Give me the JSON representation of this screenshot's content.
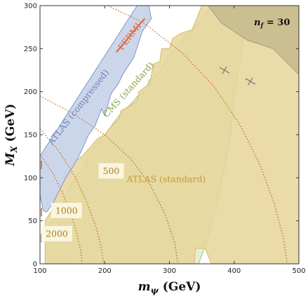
{
  "chart_data": {
    "type": "area",
    "xlabel_main": "m",
    "xlabel_sub": "ψ",
    "xlabel_unit": " (GeV)",
    "ylabel_main": "M",
    "ylabel_sub": "X",
    "ylabel_unit": " (GeV)",
    "xlim": [
      100,
      500
    ],
    "ylim": [
      0,
      300
    ],
    "x_ticks": [
      100,
      200,
      300,
      400,
      500
    ],
    "y_ticks": [
      0,
      50,
      100,
      150,
      200,
      250,
      300
    ],
    "grid": false,
    "annotation": {
      "nf_label": "n",
      "nf_sub": "f",
      "nf_value": " = 30"
    },
    "colors": {
      "atlas_standard": "#e6d59a",
      "atlas_standard_edge": "#d9b86a",
      "cms": "#e3ebcc",
      "cms_edge": "#a8c080",
      "atlas_compressed": "#c9d4ea",
      "atlas_compressed_edge": "#7f97c8",
      "fermi": "#e06a40",
      "nf_region": "#c0b68a",
      "contour": "#c0692c"
    },
    "regions": [
      {
        "id": "cms-standard",
        "label": "CMS (standard)",
        "label_at": [
          240,
          200
        ],
        "label_angle": 48,
        "label_color": "#8aa84a",
        "points": [
          [
            108,
            0
          ],
          [
            108,
            40
          ],
          [
            118,
            48
          ],
          [
            125,
            58
          ],
          [
            135,
            70
          ],
          [
            142,
            82
          ],
          [
            150,
            95
          ],
          [
            158,
            104
          ],
          [
            168,
            110
          ],
          [
            172,
            120
          ],
          [
            180,
            130
          ],
          [
            188,
            140
          ],
          [
            200,
            150
          ],
          [
            210,
            160
          ],
          [
            222,
            172
          ],
          [
            238,
            184
          ],
          [
            250,
            194
          ],
          [
            265,
            202
          ],
          [
            268,
            213
          ],
          [
            285,
            222
          ],
          [
            290,
            232
          ],
          [
            298,
            241
          ],
          [
            310,
            252
          ],
          [
            322,
            262
          ],
          [
            335,
            272
          ],
          [
            350,
            285
          ],
          [
            368,
            300
          ],
          [
            420,
            300
          ],
          [
            410,
            240
          ],
          [
            400,
            200
          ],
          [
            395,
            150
          ],
          [
            385,
            110
          ],
          [
            370,
            60
          ],
          [
            355,
            20
          ],
          [
            345,
            0
          ]
        ]
      },
      {
        "id": "atlas-standard",
        "label": "ATLAS (standard)",
        "label_at": [
          295,
          95
        ],
        "label_angle": 0,
        "label_color": "#c99a3a",
        "points": [
          [
            108,
            0
          ],
          [
            108,
            50
          ],
          [
            118,
            62
          ],
          [
            125,
            80
          ],
          [
            135,
            100
          ],
          [
            145,
            108
          ],
          [
            152,
            118
          ],
          [
            165,
            125
          ],
          [
            175,
            133
          ],
          [
            188,
            145
          ],
          [
            200,
            150
          ],
          [
            210,
            160
          ],
          [
            222,
            168
          ],
          [
            225,
            178
          ],
          [
            240,
            184
          ],
          [
            250,
            190
          ],
          [
            253,
            200
          ],
          [
            270,
            210
          ],
          [
            275,
            232
          ],
          [
            285,
            235
          ],
          [
            288,
            250
          ],
          [
            300,
            250
          ],
          [
            305,
            262
          ],
          [
            318,
            268
          ],
          [
            335,
            272
          ],
          [
            350,
            300
          ],
          [
            500,
            300
          ],
          [
            500,
            0
          ],
          [
            365,
            0
          ],
          [
            355,
            18
          ],
          [
            340,
            18
          ],
          [
            338,
            0
          ]
        ]
      },
      {
        "id": "atlas-compressed",
        "label": "ATLAS (compressed)",
        "label_at": [
          163,
          180
        ],
        "label_angle": 52,
        "label_color": "#6e86bc",
        "points": [
          [
            100,
            80
          ],
          [
            100,
            125
          ],
          [
            250,
            300
          ],
          [
            268,
            300
          ],
          [
            272,
            285
          ],
          [
            258,
            270
          ],
          [
            245,
            240
          ],
          [
            228,
            220
          ],
          [
            220,
            208
          ],
          [
            210,
            198
          ],
          [
            200,
            172
          ],
          [
            195,
            180
          ],
          [
            185,
            160
          ],
          [
            175,
            150
          ],
          [
            168,
            138
          ],
          [
            160,
            125
          ],
          [
            150,
            112
          ],
          [
            140,
            100
          ],
          [
            125,
            78
          ],
          [
            120,
            70
          ],
          [
            110,
            60
          ],
          [
            105,
            62
          ]
        ]
      }
    ],
    "nf_region": [
      [
        360,
        300
      ],
      [
        500,
        300
      ],
      [
        500,
        220
      ],
      [
        460,
        250
      ],
      [
        420,
        260
      ],
      [
        400,
        270
      ],
      [
        380,
        280
      ]
    ],
    "fermi": {
      "label": "FERMI",
      "label_at": [
        242,
        262
      ],
      "label_angle": 52,
      "points": [
        [
          218,
          246
        ],
        [
          225,
          252
        ],
        [
          232,
          258
        ],
        [
          240,
          266
        ],
        [
          248,
          273
        ],
        [
          256,
          280
        ],
        [
          262,
          285
        ]
      ]
    },
    "contours": [
      {
        "label": "2000",
        "label_at": [
          126,
          35
        ],
        "points": [
          [
            100,
            127
          ],
          [
            120,
            105
          ],
          [
            135,
            82
          ],
          [
            148,
            58
          ],
          [
            157,
            35
          ],
          [
            163,
            15
          ],
          [
            165,
            0
          ]
        ]
      },
      {
        "label": "1000",
        "label_at": [
          141,
          62
        ],
        "points": [
          [
            100,
            157
          ],
          [
            130,
            130
          ],
          [
            155,
            100
          ],
          [
            172,
            72
          ],
          [
            187,
            42
          ],
          [
            195,
            18
          ],
          [
            198,
            0
          ]
        ]
      },
      {
        "label": "500",
        "label_at": [
          210,
          108
        ],
        "points": [
          [
            100,
            195
          ],
          [
            150,
            175
          ],
          [
            200,
            150
          ],
          [
            240,
            122
          ],
          [
            270,
            92
          ],
          [
            293,
            58
          ],
          [
            308,
            25
          ],
          [
            313,
            0
          ]
        ]
      },
      {
        "label": "",
        "label_at": [
          0,
          0
        ],
        "points": [
          [
            205,
            300
          ],
          [
            260,
            280
          ],
          [
            320,
            245
          ],
          [
            370,
            205
          ],
          [
            410,
            160
          ],
          [
            440,
            115
          ],
          [
            462,
            70
          ],
          [
            476,
            30
          ],
          [
            482,
            0
          ]
        ]
      }
    ],
    "box_labels": [
      {
        "text": "500",
        "at": [
          210,
          108
        ]
      },
      {
        "text": "1000",
        "at": [
          141,
          62
        ]
      },
      {
        "text": "2000",
        "at": [
          126,
          35
        ]
      }
    ],
    "fermi_marks": [
      [
        100,
        115
      ],
      [
        100,
        60
      ],
      [
        100,
        30
      ]
    ],
    "ticks_marks": [
      {
        "at": [
          385,
          225
        ],
        "angle": 30
      },
      {
        "at": [
          425,
          212
        ],
        "angle": 30
      }
    ]
  }
}
